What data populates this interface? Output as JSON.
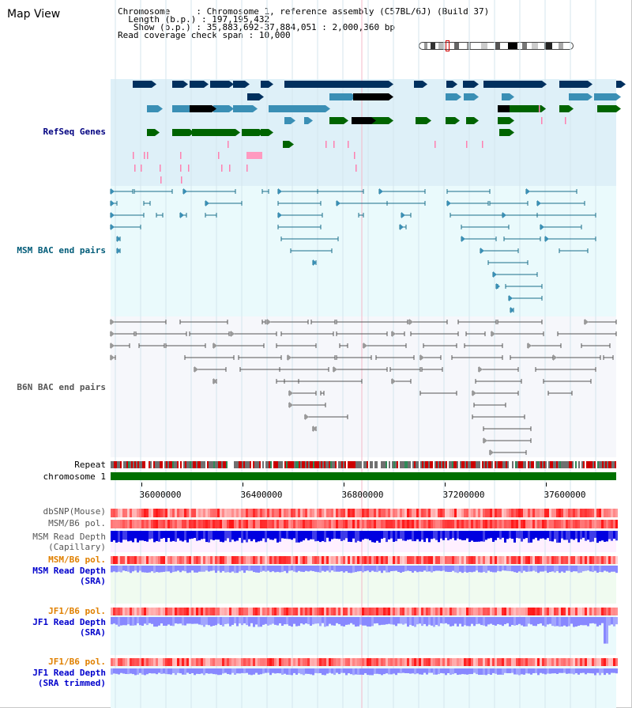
{
  "header": {
    "title": "Map View",
    "chromosome_key": "Chromosome",
    "chromosome_value": "Chromosome 1, reference assembly (C57BL/6J) (Build 37)",
    "length_key": "Length (b.p.)",
    "length_value": "197,195,432",
    "show_key": "Show (b.p.)",
    "show_value": "35,883,692-37,884,051 : 2,000,360 bp",
    "coverage_key": "Read coverage check span",
    "coverage_value": "10,000"
  },
  "tracks": {
    "refseq": "RefSeq Genes",
    "msm_bac": "MSM BAC end pairs",
    "b6n_bac": "B6N BAC end pairs",
    "repeat": "Repeat",
    "chromosome": "chromosome 1",
    "dbsnp": "dbSNP(Mouse)",
    "msm_b6_pol_1": "MSM/B6 pol.",
    "msm_depth_cap_1": "MSM Read Depth",
    "msm_depth_cap_2": "(Capillary)",
    "msm_b6_pol_2": "MSM/B6 pol.",
    "msm_depth_sra_1": "MSM Read Depth",
    "msm_depth_sra_2": "(SRA)",
    "jf1_b6_pol_1": "JF1/B6 pol.",
    "jf1_depth_sra_1": "JF1 Read Depth",
    "jf1_depth_sra_2": "(SRA)",
    "jf1_b6_pol_2": "JF1/B6 pol.",
    "jf1_depth_trim_1": "JF1 Read Depth",
    "jf1_depth_trim_2": "(SRA trimmed)"
  },
  "axis": {
    "ticks": [
      "36000000",
      "36400000",
      "36800000",
      "37200000",
      "37600000"
    ],
    "tick_values": [
      36000000,
      36400000,
      36800000,
      37200000,
      37600000
    ],
    "start": 35883692,
    "end": 37884051
  },
  "colors": {
    "refseq_bg": "#def0f8",
    "msm_bg": "#eafafc",
    "b6n_bg": "#f6f7fb",
    "gene_dark": "#00305e",
    "gene_mid": "#3a8fb5",
    "gene_green": "#006400",
    "bac_line": "#1a6e8a",
    "b6n_line": "#555555",
    "chromosome_bar": "#007000",
    "pol_red": "#e80000",
    "depth_blue": "#0000e0",
    "depth_light": "#8888ff",
    "label_navy": "#000080",
    "label_teal": "#005b78",
    "label_orange": "#e08000",
    "label_gray": "#555555"
  }
}
